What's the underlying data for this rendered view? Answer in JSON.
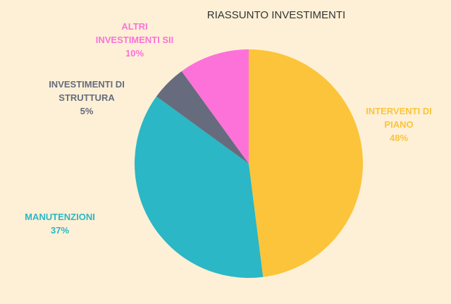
{
  "chart_data": {
    "type": "pie",
    "title": "RIASSUNTO INVESTIMENTI",
    "categories": [
      "INTERVENTI DI PIANO",
      "MANUTENZIONI",
      "INVESTIMENTI DI STRUTTURA",
      "ALTRI INVESTIMENTI SII"
    ],
    "values": [
      48,
      37,
      5,
      10
    ],
    "value_labels": [
      "48%",
      "37%",
      "5%",
      "10%"
    ],
    "colors": [
      "#fcc43a",
      "#2bb7c5",
      "#666c7d",
      "#fd72d8"
    ]
  }
}
